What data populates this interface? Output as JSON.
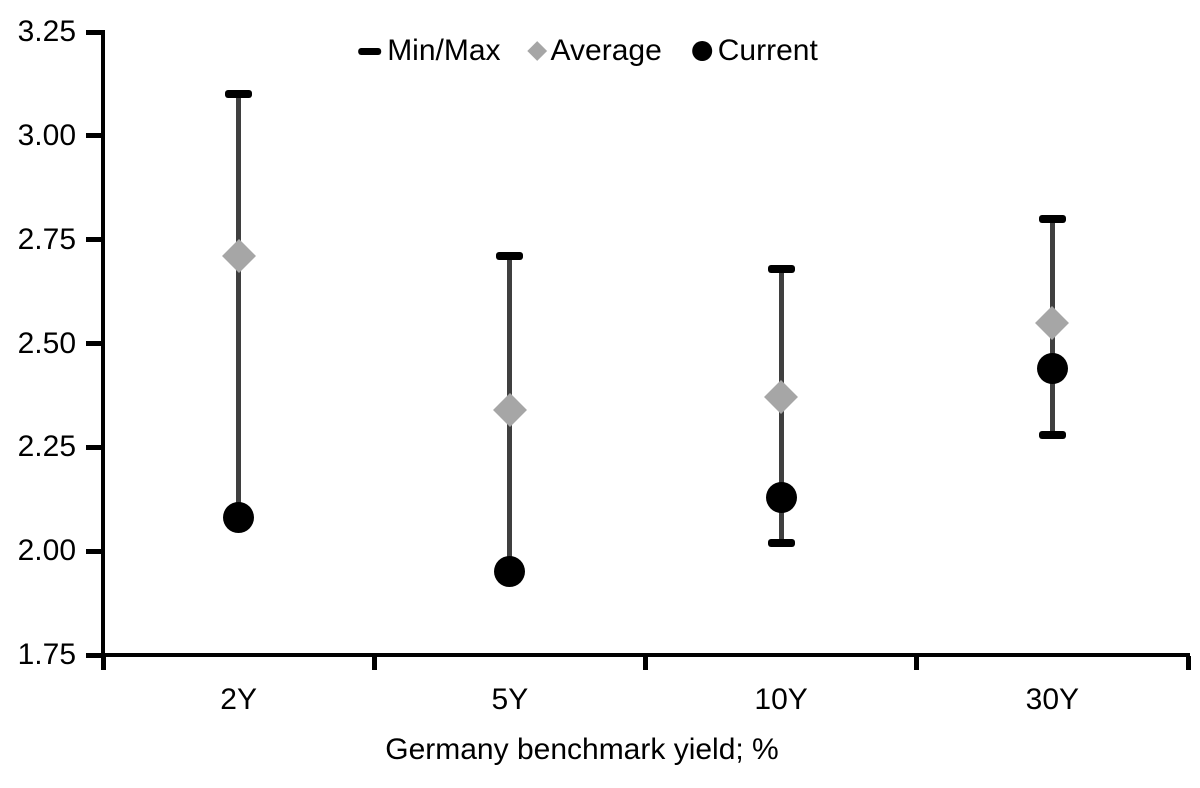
{
  "chart_data": {
    "type": "scatter",
    "subtype": "min-max-range-with-average-and-current-markers",
    "title": "",
    "xlabel": "Germany benchmark yield; %",
    "ylabel": "",
    "categories": [
      "2Y",
      "5Y",
      "10Y",
      "30Y"
    ],
    "ylim": [
      1.75,
      3.25
    ],
    "ytick_step": 0.25,
    "y_tick_labels": [
      "3.25",
      "3.00",
      "2.75",
      "2.50",
      "2.25",
      "2.00",
      "1.75"
    ],
    "grid": false,
    "legend_position": "top-center",
    "series": [
      {
        "name": "Min/Max",
        "marker": "range-bar",
        "min": [
          2.08,
          1.95,
          2.02,
          2.28
        ],
        "max": [
          3.1,
          2.71,
          2.68,
          2.8
        ]
      },
      {
        "name": "Average",
        "marker": "diamond",
        "values": [
          2.71,
          2.34,
          2.37,
          2.55
        ]
      },
      {
        "name": "Current",
        "marker": "circle",
        "values": [
          2.08,
          1.95,
          2.13,
          2.44
        ]
      }
    ],
    "colors": {
      "range_line": "#3f3f3f",
      "range_cap": "#000000",
      "average_marker": "#a6a6a6",
      "current_marker": "#000000",
      "axis": "#000000",
      "text": "#000000",
      "background": "#ffffff"
    }
  },
  "legend": {
    "items": [
      {
        "label": "Min/Max",
        "marker": "dash-icon"
      },
      {
        "label": "Average",
        "marker": "diamond-icon"
      },
      {
        "label": "Current",
        "marker": "circle-icon"
      }
    ]
  },
  "x_axis": {
    "title": "Germany benchmark yield; %",
    "labels": [
      "2Y",
      "5Y",
      "10Y",
      "30Y"
    ]
  },
  "y_axis": {
    "labels": [
      "3.25",
      "3.00",
      "2.75",
      "2.50",
      "2.25",
      "2.00",
      "1.75"
    ]
  }
}
